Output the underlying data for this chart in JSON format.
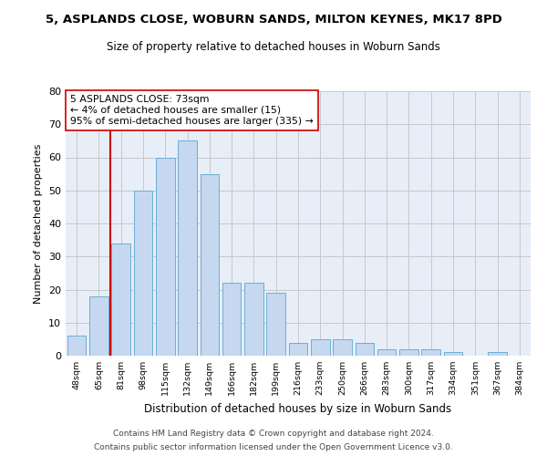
{
  "title": "5, ASPLANDS CLOSE, WOBURN SANDS, MILTON KEYNES, MK17 8PD",
  "subtitle": "Size of property relative to detached houses in Woburn Sands",
  "xlabel": "Distribution of detached houses by size in Woburn Sands",
  "ylabel": "Number of detached properties",
  "categories": [
    "48sqm",
    "65sqm",
    "81sqm",
    "98sqm",
    "115sqm",
    "132sqm",
    "149sqm",
    "166sqm",
    "182sqm",
    "199sqm",
    "216sqm",
    "233sqm",
    "250sqm",
    "266sqm",
    "283sqm",
    "300sqm",
    "317sqm",
    "334sqm",
    "351sqm",
    "367sqm",
    "384sqm"
  ],
  "values": [
    6,
    18,
    34,
    50,
    60,
    65,
    55,
    22,
    22,
    19,
    4,
    5,
    5,
    4,
    2,
    2,
    2,
    1,
    0,
    1,
    0
  ],
  "bar_color": "#c5d8f0",
  "bar_edgecolor": "#6aaed6",
  "annotation_line1": "5 ASPLANDS CLOSE: 73sqm",
  "annotation_line2": "← 4% of detached houses are smaller (15)",
  "annotation_line3": "95% of semi-detached houses are larger (335) →",
  "red_line_color": "#cc0000",
  "ylim": [
    0,
    80
  ],
  "yticks": [
    0,
    10,
    20,
    30,
    40,
    50,
    60,
    70,
    80
  ],
  "grid_color": "#c8c8c8",
  "bg_color": "#e8eef8",
  "footer1": "Contains HM Land Registry data © Crown copyright and database right 2024.",
  "footer2": "Contains public sector information licensed under the Open Government Licence v3.0."
}
